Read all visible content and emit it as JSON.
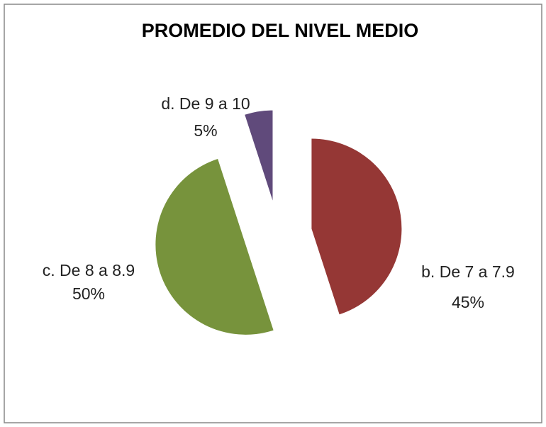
{
  "chart_data": {
    "type": "pie",
    "title": "PROMEDIO DEL NIVEL MEDIO",
    "categories": [
      "b. De 7 a 7.9",
      "c. De 8 a 8.9",
      "d. De 9 a 10"
    ],
    "values": [
      45,
      50,
      5
    ],
    "value_labels": [
      "45%",
      "50%",
      "5%"
    ],
    "colors": [
      "#953735",
      "#77933c",
      "#604a7b"
    ],
    "exploded": true
  }
}
